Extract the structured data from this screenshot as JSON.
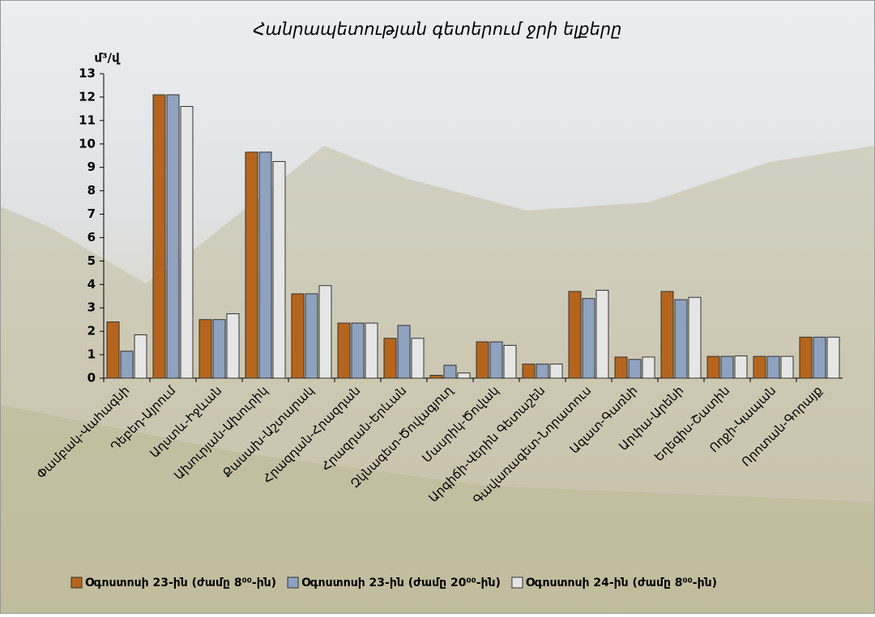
{
  "chart_data": {
    "type": "bar",
    "title": "Հանրապետության գետերում ջրի ելքերը",
    "y_label": "մ³/վ",
    "categories": [
      "Փամբակ-Վահագնի",
      "Դեբեդ-Այրում",
      "Աղստև-Իջևան",
      "Ախուրյան-Ախուրիկ",
      "Քասախ-Աշտարակ",
      "Հրազդան-Հրազդան",
      "Հրազդան-Երևան",
      "Զկնագետ-Ծովագյուղ",
      "Մասրիկ-Ծովակ",
      "Արգիճի-Վերին Գետաշեն",
      "Գավառագետ-Նորատուս",
      "Ազատ-Գառնի",
      "Արփա-Արենի",
      "Եղեգիս-Շատին",
      "Ողջի-Կապան",
      "Որոտան-Գորայք"
    ],
    "series": [
      {
        "name": "Օգոստոսի 23-ին (ժամը 8⁰⁰-ին)",
        "color": "#b5651d",
        "values": [
          2.4,
          12.1,
          2.5,
          9.65,
          3.6,
          2.35,
          1.7,
          0.12,
          1.55,
          0.6,
          3.7,
          0.9,
          3.7,
          0.93,
          0.93,
          1.75
        ]
      },
      {
        "name": "Օգոստոսի 23-ին (ժամը 20⁰⁰-ին)",
        "color": "#8fa2bf",
        "values": [
          1.15,
          12.1,
          2.5,
          9.65,
          3.6,
          2.35,
          2.25,
          0.55,
          1.55,
          0.6,
          3.4,
          0.8,
          3.35,
          0.93,
          0.93,
          1.75
        ]
      },
      {
        "name": "Օգոստոսի 24-ին (ժամը 8⁰⁰-ին)",
        "color": "#e6e6e6",
        "values": [
          1.85,
          11.6,
          2.75,
          9.25,
          3.95,
          2.35,
          1.7,
          0.22,
          1.4,
          0.6,
          3.75,
          0.9,
          3.45,
          0.95,
          0.93,
          1.75
        ]
      }
    ],
    "ylim": [
      0,
      13
    ],
    "yticks": [
      0,
      1,
      2,
      3,
      4,
      5,
      6,
      7,
      8,
      9,
      10,
      11,
      12,
      13
    ],
    "grid": false,
    "legend": "bottom"
  }
}
